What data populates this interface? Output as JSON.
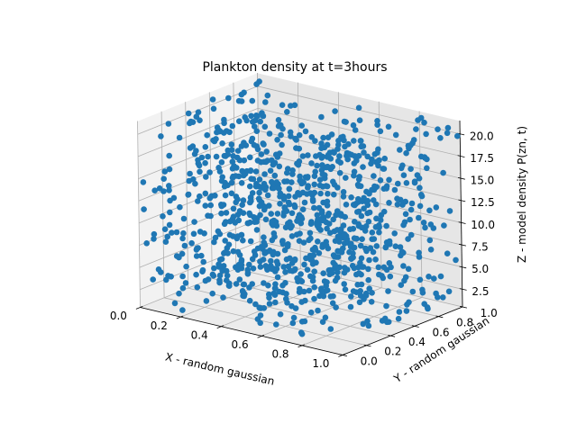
{
  "chart_data": {
    "type": "scatter",
    "projection": "3d",
    "title": "Plankton density at t=3hours",
    "xlabel": "X - random gaussian",
    "ylabel": "Y - random gaussian",
    "zlabel": "Z - model density P(zn, t)",
    "xlim": [
      0.0,
      1.0
    ],
    "ylim": [
      0.0,
      1.0
    ],
    "zlim": [
      0.5,
      21.5
    ],
    "xticks": [
      "0.0",
      "0.2",
      "0.4",
      "0.6",
      "0.8",
      "1.0"
    ],
    "yticks": [
      "0.0",
      "0.2",
      "0.4",
      "0.6",
      "0.8",
      "1.0"
    ],
    "zticks": [
      "2.5",
      "5.0",
      "7.5",
      "10.0",
      "12.5",
      "15.0",
      "17.5",
      "20.0"
    ],
    "grid": true,
    "point_color": "#1f77b4",
    "pane_colors": [
      "#f2f2f2",
      "#e6e6e6",
      "#ececec"
    ],
    "n_points": 1000,
    "distribution": "x and y uniform on [0, 1], z uniform on [1, 21]"
  }
}
